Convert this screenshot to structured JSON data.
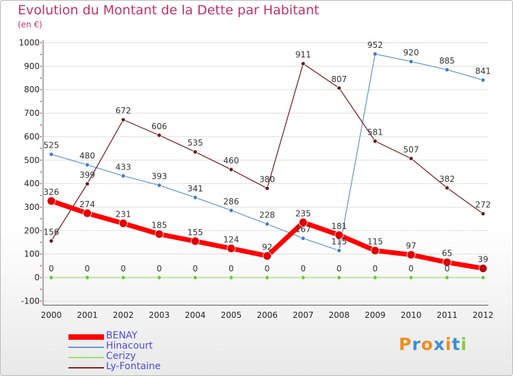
{
  "title": "Evolution du Montant de la Dette par Habitant",
  "unit": "(en €)",
  "logo": "Proxiti",
  "chart_data": {
    "type": "line",
    "x": [
      "2000",
      "2001",
      "2002",
      "2003",
      "2004",
      "2005",
      "2006",
      "2007",
      "2008",
      "2009",
      "2010",
      "2011",
      "2012"
    ],
    "ylim": [
      -100,
      1000
    ],
    "yticks": [
      -100,
      0,
      100,
      200,
      300,
      400,
      500,
      600,
      700,
      800,
      900,
      1000
    ],
    "grid": "horizontal",
    "legend_position": "bottom-left",
    "series": [
      {
        "name": "BENAY",
        "color": "#ff0000",
        "values": [
          326,
          274,
          231,
          185,
          155,
          124,
          92,
          235,
          181,
          115,
          97,
          65,
          39
        ]
      },
      {
        "name": "Hinacourt",
        "color": "#6699cc",
        "values": [
          525,
          480,
          433,
          393,
          341,
          286,
          228,
          167,
          115,
          952,
          920,
          885,
          841
        ]
      },
      {
        "name": "Cerizy",
        "color": "#99dd66",
        "values": [
          0,
          0,
          0,
          0,
          0,
          0,
          0,
          0,
          0,
          0,
          0,
          0,
          0
        ]
      },
      {
        "name": "Ly-Fontaine",
        "color": "#772222",
        "values": [
          156,
          399,
          672,
          606,
          535,
          460,
          380,
          911,
          807,
          581,
          507,
          382,
          272
        ]
      }
    ]
  }
}
